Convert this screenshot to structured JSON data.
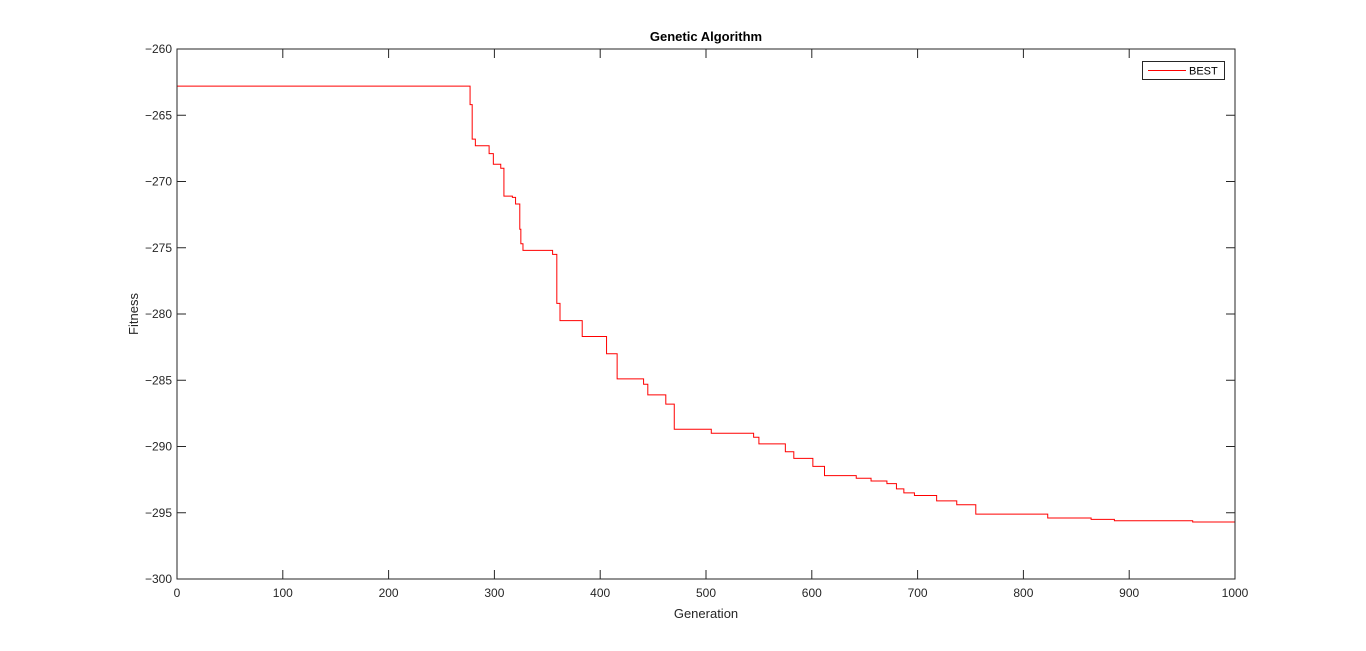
{
  "chart_data": {
    "type": "line",
    "title": "Genetic Algorithm",
    "xlabel": "Generation",
    "ylabel": "Fitness",
    "xlim": [
      0,
      1000
    ],
    "ylim": [
      -300,
      -260
    ],
    "xticks": [
      0,
      100,
      200,
      300,
      400,
      500,
      600,
      700,
      800,
      900,
      1000
    ],
    "yticks": [
      -260,
      -265,
      -270,
      -275,
      -280,
      -285,
      -290,
      -295,
      -300
    ],
    "grid": false,
    "legend_position": "top-right",
    "series": [
      {
        "name": "BEST",
        "color": "#ff0000",
        "step": true,
        "points": [
          [
            0,
            -262.8
          ],
          [
            275,
            -262.8
          ],
          [
            277,
            -264.2
          ],
          [
            279,
            -266.8
          ],
          [
            282,
            -267.3
          ],
          [
            295,
            -267.9
          ],
          [
            299,
            -268.7
          ],
          [
            306,
            -269.0
          ],
          [
            309,
            -271.1
          ],
          [
            317,
            -271.2
          ],
          [
            320,
            -271.7
          ],
          [
            324,
            -273.6
          ],
          [
            325,
            -274.7
          ],
          [
            327,
            -275.2
          ],
          [
            355,
            -275.5
          ],
          [
            359,
            -279.2
          ],
          [
            362,
            -280.5
          ],
          [
            383,
            -281.7
          ],
          [
            406,
            -283.0
          ],
          [
            416,
            -284.9
          ],
          [
            441,
            -285.3
          ],
          [
            445,
            -286.1
          ],
          [
            462,
            -286.8
          ],
          [
            470,
            -288.7
          ],
          [
            505,
            -289.0
          ],
          [
            545,
            -289.3
          ],
          [
            550,
            -289.8
          ],
          [
            575,
            -290.4
          ],
          [
            583,
            -290.9
          ],
          [
            601,
            -291.5
          ],
          [
            612,
            -292.2
          ],
          [
            642,
            -292.4
          ],
          [
            656,
            -292.6
          ],
          [
            671,
            -292.8
          ],
          [
            680,
            -293.2
          ],
          [
            687,
            -293.5
          ],
          [
            697,
            -293.7
          ],
          [
            718,
            -294.1
          ],
          [
            737,
            -294.4
          ],
          [
            755,
            -295.1
          ],
          [
            823,
            -295.4
          ],
          [
            864,
            -295.5
          ],
          [
            886,
            -295.6
          ],
          [
            960,
            -295.7
          ],
          [
            1000,
            -295.7
          ]
        ]
      }
    ]
  }
}
